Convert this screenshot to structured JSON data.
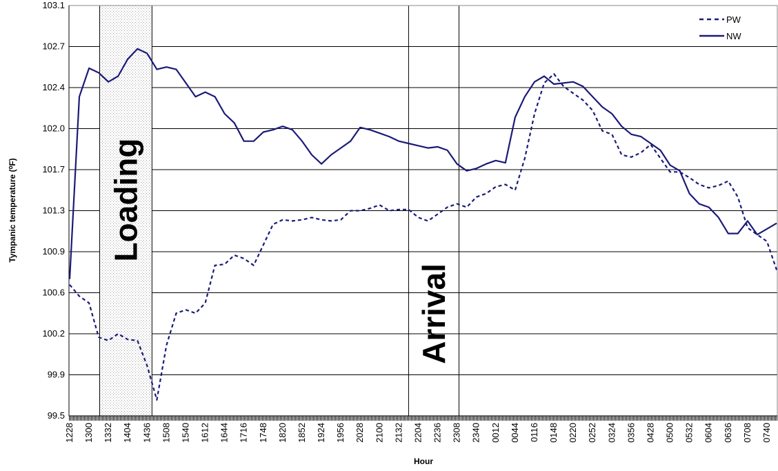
{
  "chart_data": {
    "type": "line",
    "y_label": "Tympanic temperature (⁰F)",
    "x_label": "Hour",
    "annotations": [
      "Loading",
      "Arrival"
    ],
    "categories": [
      "1228",
      null,
      "1300",
      null,
      "1332",
      null,
      "1404",
      null,
      "1436",
      null,
      "1508",
      null,
      "1540",
      null,
      "1612",
      null,
      "1644",
      null,
      "1716",
      null,
      "1748",
      null,
      "1820",
      null,
      "1852",
      null,
      "1924",
      null,
      "1956",
      null,
      "2028",
      null,
      "2100",
      null,
      "2132",
      null,
      "2204",
      null,
      "2236",
      null,
      "2308",
      null,
      "2340",
      null,
      "0012",
      null,
      "0044",
      null,
      "0116",
      null,
      "0148",
      null,
      "0220",
      null,
      "0252",
      null,
      "0324",
      null,
      "0356",
      null,
      "0428",
      null,
      "0500",
      null,
      "0532",
      null,
      "0604",
      null,
      "0636",
      null,
      "0708",
      null,
      "0740",
      null
    ],
    "series": [
      {
        "name": "PW",
        "color": "#1a1a78",
        "style": "dashed",
        "values": [
          100.65,
          100.55,
          100.49,
          100.19,
          100.16,
          100.22,
          100.17,
          100.16,
          99.94,
          99.64,
          100.12,
          100.4,
          100.43,
          100.4,
          100.49,
          100.82,
          100.83,
          100.91,
          100.88,
          100.82,
          101.0,
          101.18,
          101.22,
          101.21,
          101.22,
          101.24,
          101.22,
          101.21,
          101.22,
          101.3,
          101.3,
          101.32,
          101.35,
          101.3,
          101.31,
          101.31,
          101.24,
          101.21,
          101.27,
          101.33,
          101.36,
          101.33,
          101.42,
          101.45,
          101.51,
          101.53,
          101.48,
          101.76,
          102.15,
          102.42,
          102.5,
          102.39,
          102.33,
          102.27,
          102.18,
          102.0,
          101.97,
          101.79,
          101.77,
          101.81,
          101.88,
          101.76,
          101.64,
          101.64,
          101.59,
          101.53,
          101.5,
          101.52,
          101.56,
          101.42,
          101.15,
          101.09,
          101.03,
          100.78
        ]
      },
      {
        "name": "NW",
        "color": "#1a1a78",
        "style": "solid",
        "values": [
          100.7,
          102.3,
          102.55,
          102.51,
          102.43,
          102.48,
          102.63,
          102.72,
          102.68,
          102.54,
          102.56,
          102.54,
          102.42,
          102.3,
          102.34,
          102.3,
          102.15,
          102.07,
          101.91,
          101.91,
          101.99,
          102.01,
          102.04,
          102.01,
          101.91,
          101.79,
          101.71,
          101.79,
          101.85,
          101.91,
          102.03,
          102.01,
          101.98,
          101.95,
          101.91,
          101.89,
          101.87,
          101.85,
          101.86,
          101.83,
          101.71,
          101.65,
          101.67,
          101.71,
          101.74,
          101.72,
          102.12,
          102.3,
          102.43,
          102.48,
          102.41,
          102.42,
          102.43,
          102.39,
          102.3,
          102.21,
          102.15,
          102.04,
          101.97,
          101.95,
          101.89,
          101.83,
          101.7,
          101.65,
          101.45,
          101.36,
          101.33,
          101.24,
          101.1,
          101.1,
          101.21,
          101.09,
          101.14,
          101.19
        ]
      }
    ],
    "ylim": [
      99.5,
      103.1
    ],
    "yticks": [
      99.5,
      {
        "value": 99.86,
        "label": "99.9"
      },
      {
        "value": 100.22,
        "label": "100.2"
      },
      {
        "value": 100.58,
        "label": "100.6"
      },
      {
        "value": 100.94,
        "label": "100.9"
      },
      101.3,
      {
        "value": 101.66,
        "label": "101.7"
      },
      {
        "value": 102.02,
        "label": "102.0"
      },
      {
        "value": 102.38,
        "label": "102.4"
      },
      {
        "value": 102.74,
        "label": "102.7"
      },
      103.1
    ],
    "grid": true,
    "legend": "upper right"
  }
}
